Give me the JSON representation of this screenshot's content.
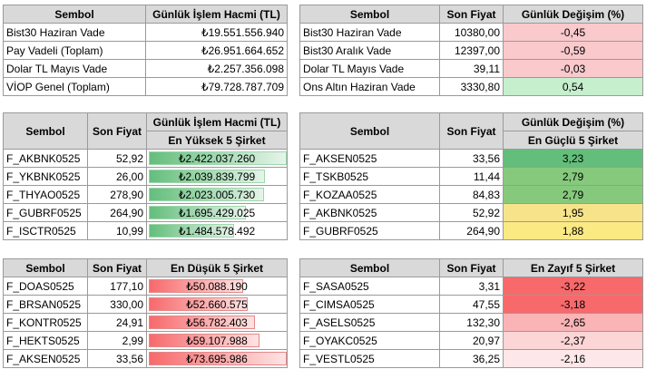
{
  "volume_table": {
    "headers": [
      "Sembol",
      "Günlük İşlem Hacmi (TL)"
    ],
    "rows": [
      {
        "sym": "Bist30 Haziran Vade",
        "val": "₺19.551.556.940"
      },
      {
        "sym": "Pay Vadeli (Toplam)",
        "val": "₺26.951.664.652"
      },
      {
        "sym": "Dolar TL Mayıs Vade",
        "val": "₺2.257.356.098"
      },
      {
        "sym": "VİOP Genel (Toplam)",
        "val": "₺79.728.787.709"
      }
    ]
  },
  "price_table": {
    "headers": [
      "Sembol",
      "Son Fiyat",
      "Günlük Değişim (%)"
    ],
    "rows": [
      {
        "sym": "Bist30 Haziran Vade",
        "price": "10380,00",
        "chg": "-0,45",
        "color": "#f9c9cc"
      },
      {
        "sym": "Bist30 Aralık Vade",
        "price": "12397,00",
        "chg": "-0,59",
        "color": "#f9c9cc"
      },
      {
        "sym": "Dolar TL Mayıs Vade",
        "price": "39,11",
        "chg": "-0,03",
        "color": "#f9c9cc"
      },
      {
        "sym": "Ons Altın Haziran Vade",
        "price": "3330,80",
        "chg": "0,54",
        "color": "#c6efce"
      }
    ]
  },
  "top_volume": {
    "headers": [
      "Sembol",
      "Son Fiyat",
      "Günlük İşlem Hacmi (TL)"
    ],
    "subheader": "En Yüksek 5 Şirket",
    "rows": [
      {
        "sym": "F_AKBNK0525",
        "price": "52,92",
        "val": "₺2.422.037.260",
        "level": 1.0
      },
      {
        "sym": "F_YKBNK0525",
        "price": "26,00",
        "val": "₺2.039.839.799",
        "level": 0.84
      },
      {
        "sym": "F_THYAO0525",
        "price": "278,90",
        "val": "₺2.023.005.730",
        "level": 0.83
      },
      {
        "sym": "F_GUBRF0525",
        "price": "264,90",
        "val": "₺1.695.429.025",
        "level": 0.7
      },
      {
        "sym": "F_ISCTR0525",
        "price": "10,99",
        "val": "₺1.484.578.492",
        "level": 0.61
      }
    ]
  },
  "top_gainers": {
    "headers": [
      "Sembol",
      "Son Fiyat",
      "Günlük Değişim (%)"
    ],
    "subheader": "En Güçlü 5 Şirket",
    "rows": [
      {
        "sym": "F_AKSEN0525",
        "price": "33,56",
        "chg": "3,23",
        "color": "#63be7b"
      },
      {
        "sym": "F_TSKB0525",
        "price": "11,44",
        "chg": "2,79",
        "color": "#86c97d"
      },
      {
        "sym": "F_KOZAA0525",
        "price": "84,83",
        "chg": "2,79",
        "color": "#86c97d"
      },
      {
        "sym": "F_AKBNK0525",
        "price": "52,92",
        "chg": "1,95",
        "color": "#f7e48a"
      },
      {
        "sym": "F_GUBRF0525",
        "price": "264,90",
        "chg": "1,88",
        "color": "#fbe983"
      }
    ]
  },
  "low_volume": {
    "headers": [
      "Sembol",
      "Son Fiyat",
      "En Düşük 5 Şirket"
    ],
    "rows": [
      {
        "sym": "F_DOAS0525",
        "price": "177,10",
        "val": "₺50.088.190",
        "level": 0.68
      },
      {
        "sym": "F_BRSAN0525",
        "price": "330,00",
        "val": "₺52.660.575",
        "level": 0.71
      },
      {
        "sym": "F_KONTR0525",
        "price": "24,91",
        "val": "₺56.782.403",
        "level": 0.77
      },
      {
        "sym": "F_HEKTS0525",
        "price": "2,99",
        "val": "₺59.107.988",
        "level": 0.8
      },
      {
        "sym": "F_AKSEN0525",
        "price": "33,56",
        "val": "₺73.695.986",
        "level": 1.0
      }
    ]
  },
  "top_losers": {
    "headers": [
      "Sembol",
      "Son Fiyat",
      "En Zayıf 5 Şirket"
    ],
    "rows": [
      {
        "sym": "F_SASA0525",
        "price": "3,31",
        "chg": "-3,22",
        "color": "#f8696b"
      },
      {
        "sym": "F_CIMSA0525",
        "price": "47,55",
        "chg": "-3,18",
        "color": "#f8696b"
      },
      {
        "sym": "F_ASELS0525",
        "price": "132,30",
        "chg": "-2,65",
        "color": "#fab4b6"
      },
      {
        "sym": "F_OYAKC0525",
        "price": "20,97",
        "chg": "-2,37",
        "color": "#fcd5d6"
      },
      {
        "sym": "F_VESTL0525",
        "price": "36,25",
        "chg": "-2,16",
        "color": "#fde7e8"
      }
    ]
  }
}
